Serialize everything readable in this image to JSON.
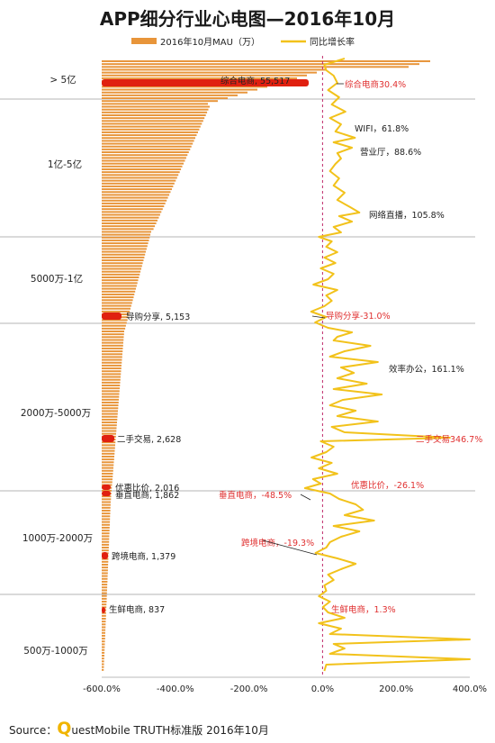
{
  "chart_data": {
    "type": "bar+line",
    "title": "APP细分行业心电图—2016年10月",
    "legend": [
      "2016年10月MAU（万）",
      "同比增长率"
    ],
    "x_axis": {
      "ticks": [
        "-600.0%",
        "-400.0%",
        "-200.0%",
        "0.0%",
        "200.0%",
        "400.0%"
      ],
      "range": [
        -600,
        400
      ]
    },
    "bands": [
      "> 5亿",
      "1亿-5亿",
      "5000万-1亿",
      "2000万-5000万",
      "1000万-2000万",
      "500万-1000万"
    ],
    "mau_highlights": [
      {
        "label": "综合电商",
        "value": "55,517"
      },
      {
        "label": "导购分享",
        "value": "5,153"
      },
      {
        "label": "二手交易",
        "value": "2,628"
      },
      {
        "label": "优惠比价",
        "value": "2,016"
      },
      {
        "label": "垂直电商",
        "value": "1,862"
      },
      {
        "label": "跨境电商",
        "value": "1,379"
      },
      {
        "label": "生鲜电商",
        "value": "837"
      }
    ],
    "growth_highlights": [
      {
        "label": "综合电商",
        "value": "30.4%",
        "color": "#e03030"
      },
      {
        "label": "WIFI",
        "value": "61.8%",
        "color": "#222222"
      },
      {
        "label": "营业厅",
        "value": "88.6%",
        "color": "#222222"
      },
      {
        "label": "网络直播",
        "value": "105.8%",
        "color": "#222222"
      },
      {
        "label": "导购分享",
        "value": "-31.0%",
        "color": "#e03030"
      },
      {
        "label": "效率办公",
        "value": "161.1%",
        "color": "#222222"
      },
      {
        "label": "二手交易",
        "value": "346.7%",
        "color": "#e03030"
      },
      {
        "label": "优惠比价",
        "value": "-26.1%",
        "color": "#e03030"
      },
      {
        "label": "垂直电商",
        "value": "-48.5%",
        "color": "#e03030"
      },
      {
        "label": "跨境电商",
        "value": "-19.3%",
        "color": "#e03030"
      },
      {
        "label": "生鲜电商",
        "value": "1.3%",
        "color": "#e03030"
      }
    ]
  },
  "source": {
    "prefix": "Source：",
    "q": "Q",
    "rest": "uestMobile TRUTH标准版 2016年10月"
  },
  "colors": {
    "bar": "#e8953a",
    "line": "#f2c21b",
    "highlight": "#e02010",
    "zero_line": "#c0286a",
    "band_line": "#b5b5b5",
    "logo_q": "#f0b400"
  }
}
